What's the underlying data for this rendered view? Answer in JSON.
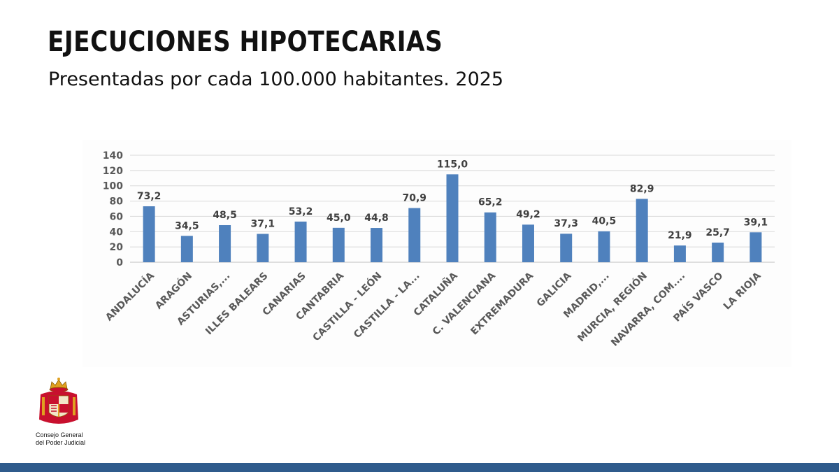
{
  "header": {
    "title": "EJECUCIONES HIPOTECARIAS",
    "subtitle": "Presentadas por cada 100.000 habitantes. 2025"
  },
  "chart_data": {
    "type": "bar",
    "title": "",
    "xlabel": "",
    "ylabel": "",
    "ylim": [
      0,
      140
    ],
    "yticks": [
      0,
      20,
      40,
      60,
      80,
      100,
      120,
      140
    ],
    "grid": true,
    "legend": "none",
    "bar_color": "#4f81bd",
    "categories": [
      "ANDALUCÍA",
      "ARAGÓN",
      "ASTURIAS,...",
      "ILLES BALEARS",
      "CANARIAS",
      "CANTABRIA",
      "CASTILLA - LEÓN",
      "CASTILLA - LA...",
      "CATALUÑA",
      "C. VALENCIANA",
      "EXTREMADURA",
      "GALICIA",
      "MADRID,...",
      "MURCIA, REGIÓN",
      "NAVARRA, COM....",
      "PAÍS VASCO",
      "LA RIOJA"
    ],
    "values": [
      73.2,
      34.5,
      48.5,
      37.1,
      53.2,
      45.0,
      44.8,
      70.9,
      115.0,
      65.2,
      49.2,
      37.3,
      40.5,
      82.9,
      21.9,
      25.7,
      39.1
    ],
    "value_labels": [
      "73,2",
      "34,5",
      "48,5",
      "37,1",
      "53,2",
      "45,0",
      "44,8",
      "70,9",
      "115,0",
      "65,2",
      "49,2",
      "37,3",
      "40,5",
      "82,9",
      "21,9",
      "25,7",
      "39,1"
    ]
  },
  "logo": {
    "name": "cgpj-coat-of-arms-icon",
    "text_line1": "Consejo General",
    "text_line2": "del Poder Judicial"
  },
  "colors": {
    "accent_bar": "#2f5b8c",
    "crest_red": "#c8102e",
    "crest_gold": "#e0a020"
  }
}
